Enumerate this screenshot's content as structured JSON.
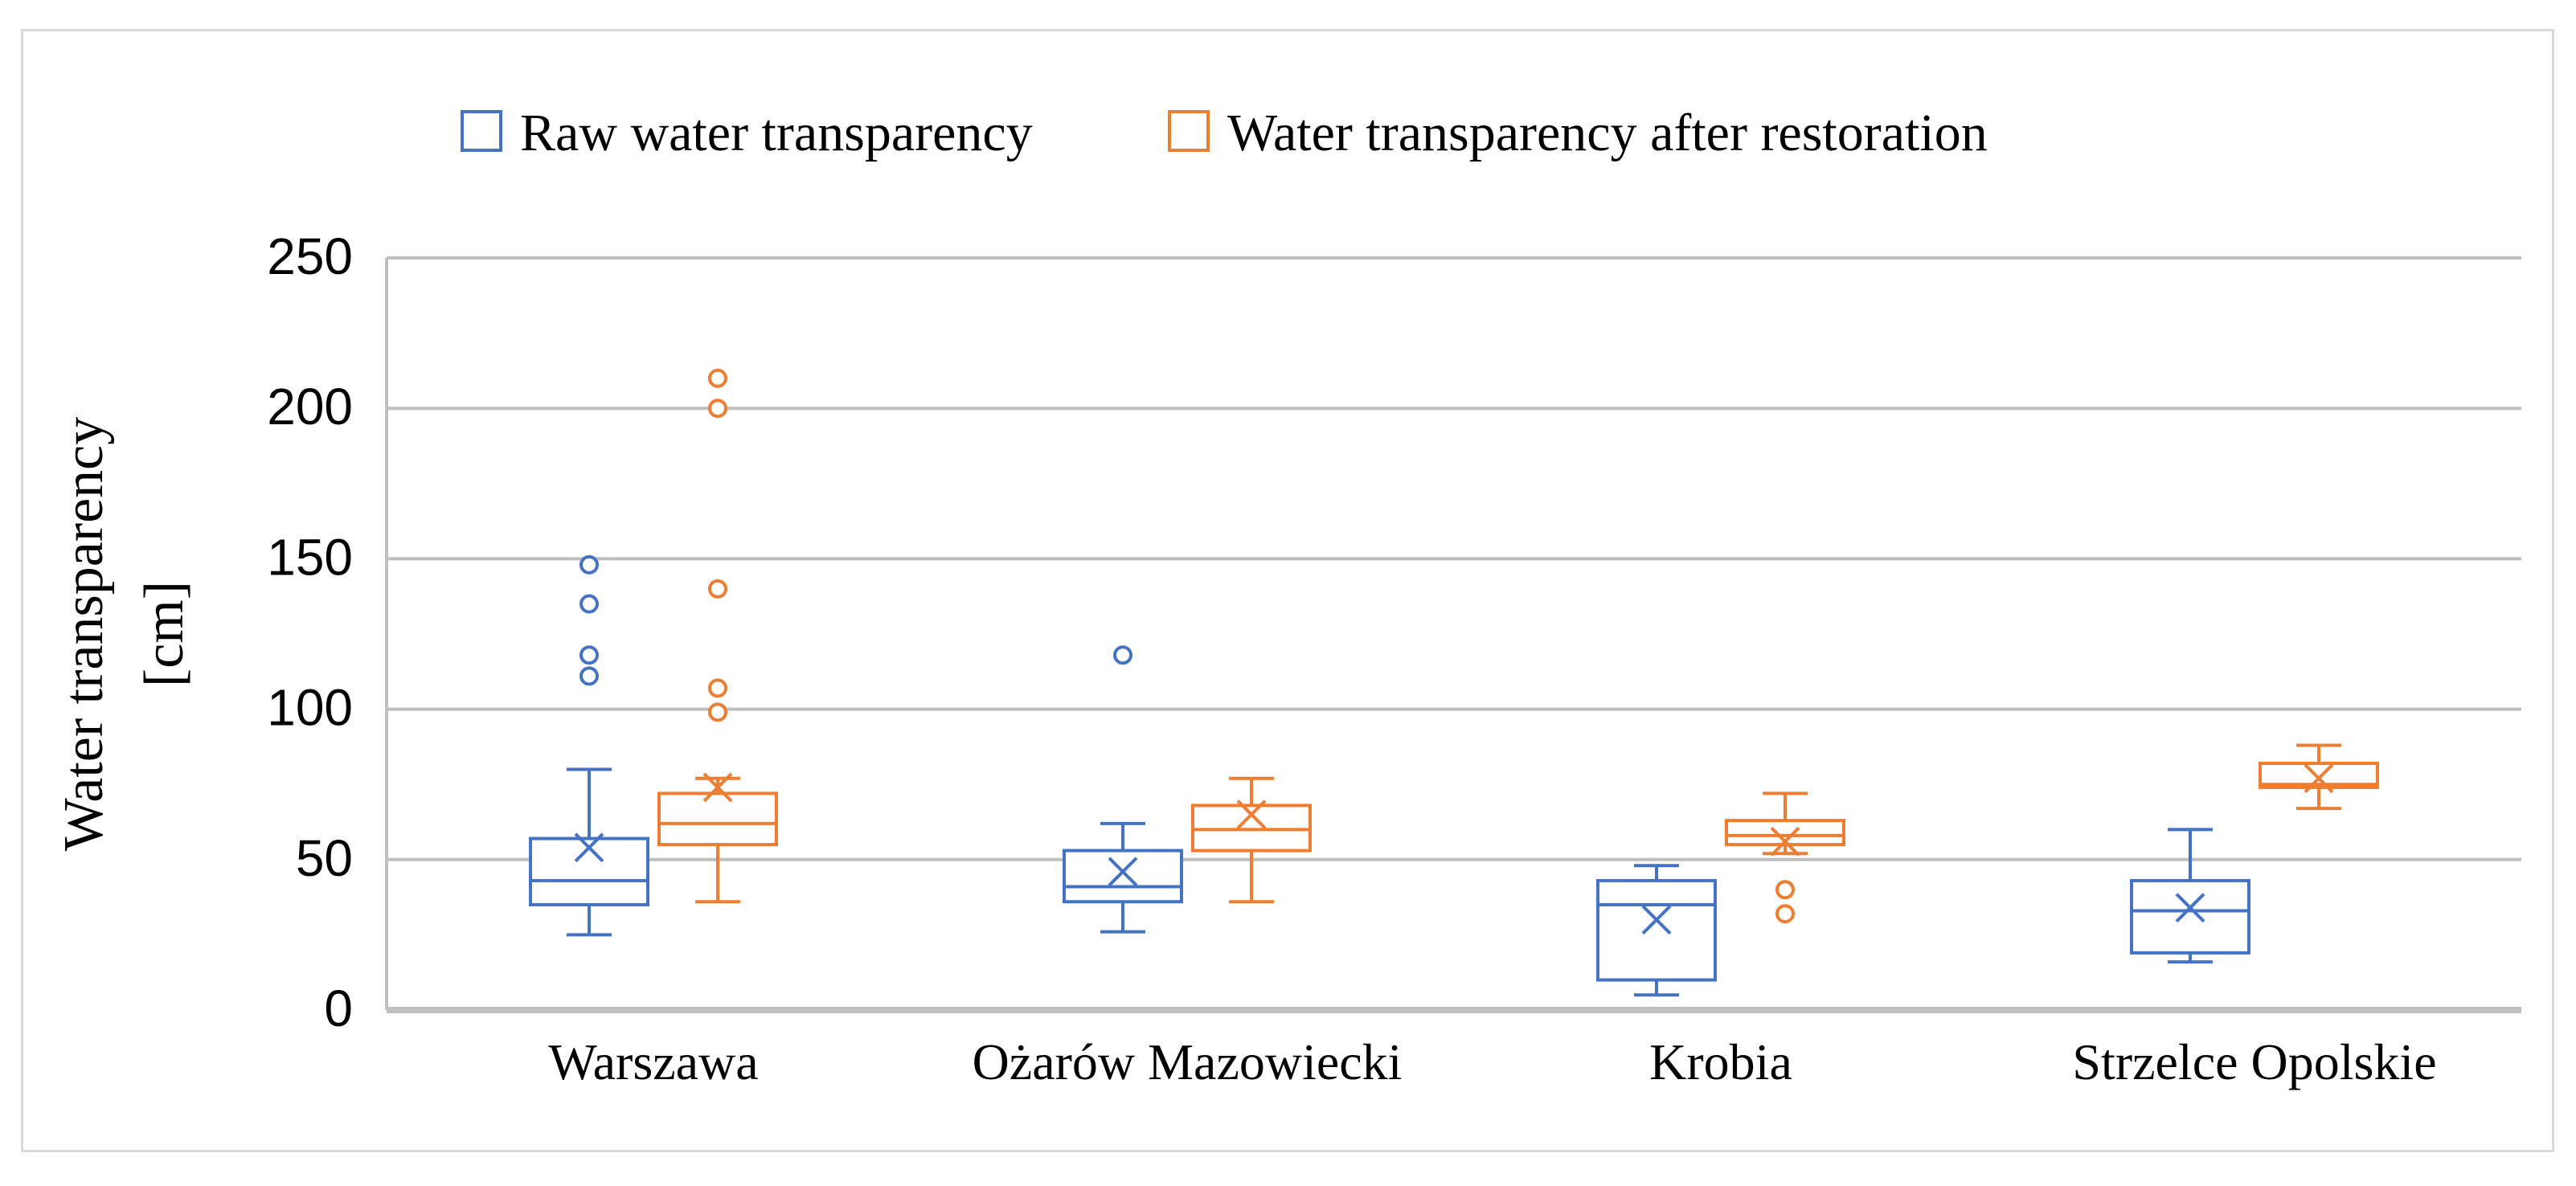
{
  "chart_data": {
    "type": "box",
    "title": "",
    "xlabel": "",
    "ylabel_lines": [
      "Water transparency",
      "[cm]"
    ],
    "ylim": [
      0,
      250
    ],
    "yticks": [
      0,
      50,
      100,
      150,
      200,
      250
    ],
    "grid": true,
    "legend_position": "top",
    "categories": [
      "Warszawa",
      "Ożarów Mazowiecki",
      "Krobia",
      "Strzelce Opolskie"
    ],
    "series": [
      {
        "name": "Raw water transparency",
        "color": "#4472c4",
        "boxes": [
          {
            "min": 25,
            "q1": 35,
            "median": 43,
            "q3": 57,
            "max": 80,
            "mean": 54,
            "outliers": [
              111,
              118,
              135,
              148
            ]
          },
          {
            "min": 26,
            "q1": 36,
            "median": 41,
            "q3": 53,
            "max": 62,
            "mean": 46,
            "outliers": [
              118
            ]
          },
          {
            "min": 5,
            "q1": 10,
            "median": 35,
            "q3": 43,
            "max": 48,
            "mean": 30,
            "outliers": []
          },
          {
            "min": 16,
            "q1": 19,
            "median": 33,
            "q3": 43,
            "max": 60,
            "mean": 34,
            "outliers": []
          }
        ]
      },
      {
        "name": "Water transparency after restoration",
        "color": "#ed7d31",
        "boxes": [
          {
            "min": 36,
            "q1": 55,
            "median": 62,
            "q3": 72,
            "max": 77,
            "mean": 74,
            "outliers": [
              99,
              107,
              140,
              200,
              210
            ]
          },
          {
            "min": 36,
            "q1": 53,
            "median": 60,
            "q3": 68,
            "max": 77,
            "mean": 65,
            "outliers": []
          },
          {
            "min": 52,
            "q1": 55,
            "median": 58,
            "q3": 63,
            "max": 72,
            "mean": 56,
            "outliers": [
              32,
              40
            ]
          },
          {
            "min": 67,
            "q1": 74,
            "median": 75,
            "q3": 82,
            "max": 88,
            "mean": 77,
            "outliers": []
          }
        ]
      }
    ]
  }
}
